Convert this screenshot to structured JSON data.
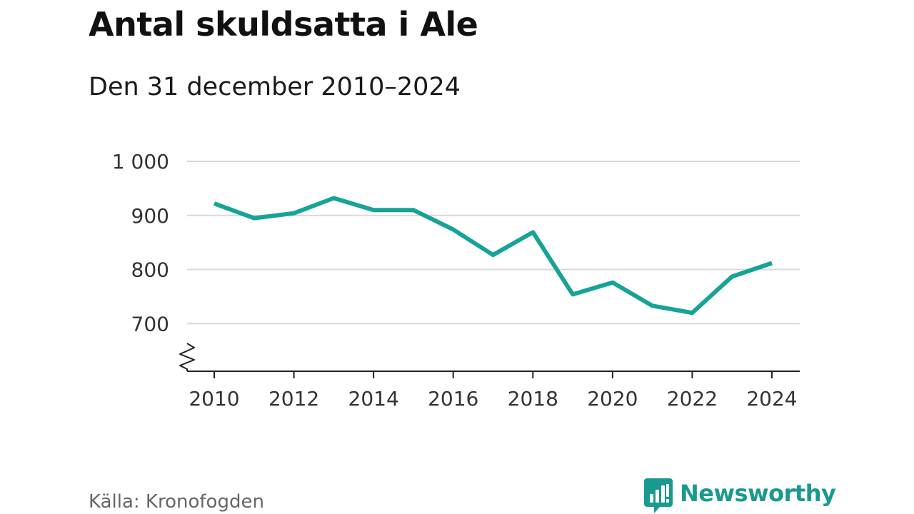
{
  "chart_data": {
    "type": "line",
    "title": "Antal skuldsatta i Ale",
    "subtitle": "Den 31 december 2010–2024",
    "source": "Källa: Kronofogden",
    "x": [
      2010,
      2011,
      2012,
      2013,
      2014,
      2015,
      2016,
      2017,
      2018,
      2019,
      2020,
      2021,
      2022,
      2023,
      2024
    ],
    "series": [
      {
        "values": [
          922,
          895,
          904,
          932,
          910,
          910,
          874,
          827,
          869,
          754,
          776,
          733,
          720,
          787,
          812
        ],
        "color": "#17a397"
      }
    ],
    "x_ticks": [
      2010,
      2012,
      2014,
      2016,
      2018,
      2020,
      2022,
      2024
    ],
    "x_tick_labels": [
      "2010",
      "2012",
      "2014",
      "2016",
      "2018",
      "2020",
      "2022",
      "2024"
    ],
    "y_ticks": [
      700,
      800,
      900,
      1000
    ],
    "y_tick_labels": [
      "700",
      "800",
      "900",
      "1 000"
    ],
    "ylim": [
      612,
      1000
    ],
    "xlim": [
      2010,
      2024
    ],
    "y_axis_break": true,
    "grid": true,
    "xlabel": "",
    "ylabel": ""
  },
  "brand": {
    "name": "Newsworthy",
    "logo_icon": "newsworthy-logo-icon",
    "color": "#1a9a8f"
  }
}
